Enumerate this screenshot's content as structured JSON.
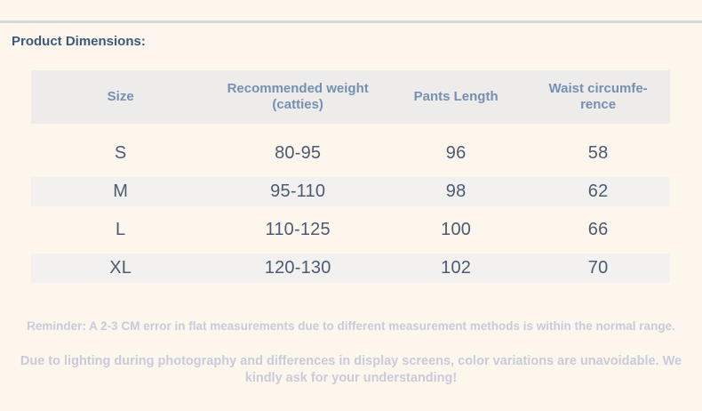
{
  "header": {
    "title": "Product Dimensions:"
  },
  "table": {
    "columns": [
      {
        "label": "Size"
      },
      {
        "label": "Recommended weight (catties)"
      },
      {
        "label": "Pants Length"
      },
      {
        "label": "Waist circumfe-\nrence"
      }
    ],
    "rows": [
      {
        "size": "S",
        "weight": "80-95",
        "pants_length": "96",
        "waist": "58"
      },
      {
        "size": "M",
        "weight": "95-110",
        "pants_length": "98",
        "waist": "62"
      },
      {
        "size": "L",
        "weight": "110-125",
        "pants_length": "100",
        "waist": "66"
      },
      {
        "size": "XL",
        "weight": "120-130",
        "pants_length": "102",
        "waist": "70"
      }
    ]
  },
  "notes": {
    "reminder": "Reminder: A 2-3 CM error in flat measurements due to different measurement methods is within the normal range.",
    "disclaimer": "Due to lighting during photography and differences in display screens, color variations are unavoidable. We kindly ask for your understanding!"
  },
  "colors": {
    "page_background": "#fdf6ec",
    "divider": "#d8d8d8",
    "title_text": "#3c5a7e",
    "table_header_background": "#edecea",
    "table_header_text": "#7590b2",
    "table_stripe": "#f2f1ef",
    "table_data_text": "#4a5b72",
    "note_text": "#c9cbda"
  }
}
